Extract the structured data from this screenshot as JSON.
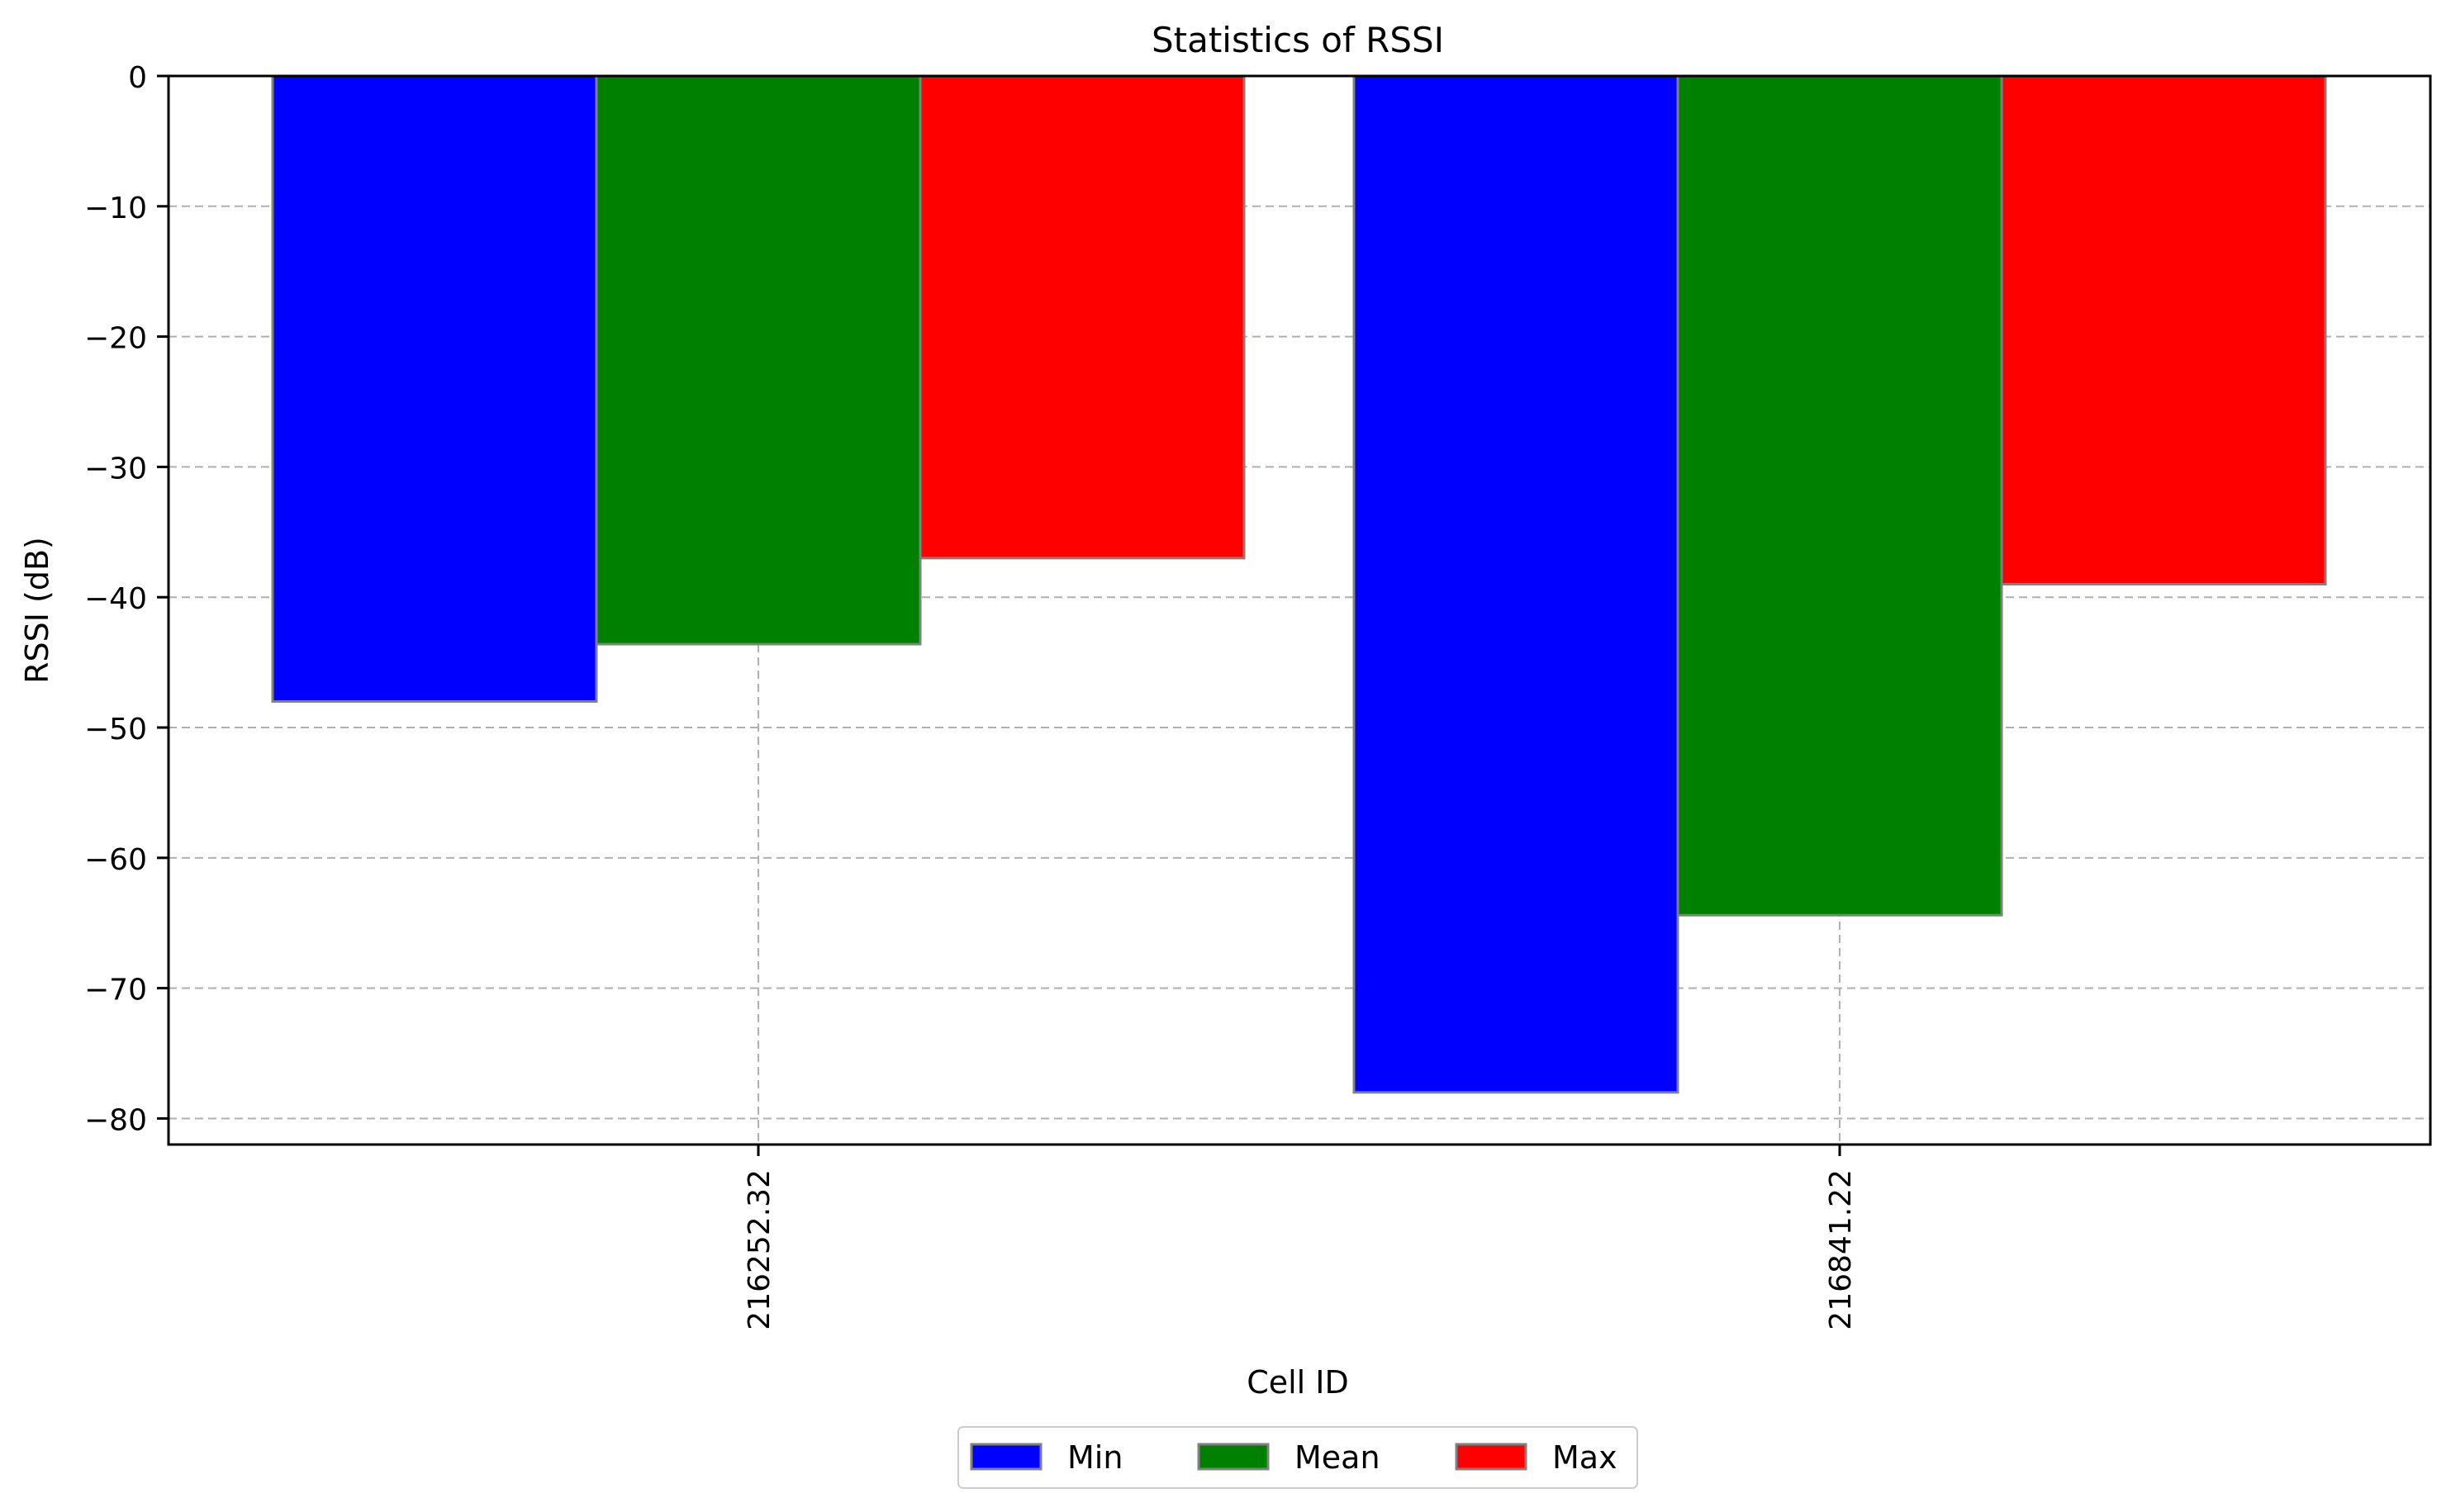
{
  "chart_data": {
    "type": "bar",
    "title": "Statistics of RSSI",
    "xlabel": "Cell ID",
    "ylabel": "RSSI (dB)",
    "categories": [
      "216252.32",
      "216841.22"
    ],
    "series": [
      {
        "name": "Min",
        "values": [
          -48,
          -78
        ],
        "color": "#0000ff"
      },
      {
        "name": "Mean",
        "values": [
          -43.6,
          -64.4
        ],
        "color": "#008000"
      },
      {
        "name": "Max",
        "values": [
          -37,
          -39
        ],
        "color": "#ff0000"
      }
    ],
    "ylim": [
      -82,
      0
    ],
    "yticks": [
      "0",
      "−10",
      "−20",
      "−30",
      "−40",
      "−50",
      "−60",
      "−70",
      "−80"
    ],
    "ytick_values": [
      0,
      -10,
      -20,
      -30,
      -40,
      -50,
      -60,
      -70,
      -80
    ],
    "grid": true,
    "legend_position": "bottom-center"
  }
}
